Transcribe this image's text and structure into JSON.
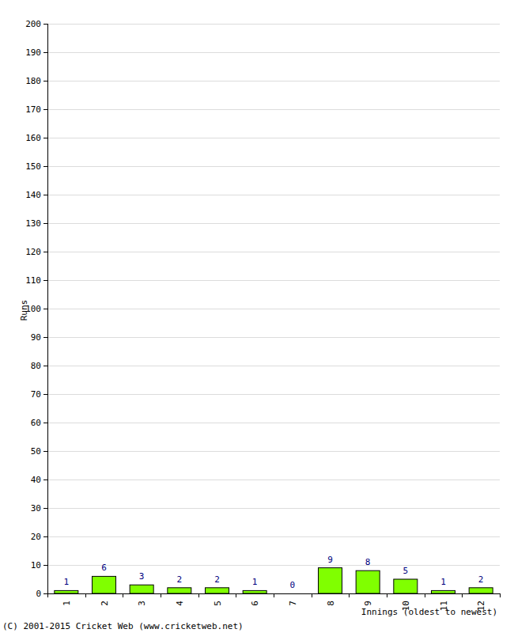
{
  "chart_data": {
    "type": "bar",
    "x_label": "Innings (oldest to newest)",
    "y_label": "Runs",
    "annotations": [
      "(C) 2001-2015 Cricket Web (www.cricketweb.net)"
    ],
    "categories": [
      "1",
      "2",
      "3",
      "4",
      "5",
      "6",
      "7",
      "8",
      "9",
      "10",
      "11",
      "12"
    ],
    "values": [
      1,
      6,
      3,
      2,
      2,
      1,
      0,
      9,
      8,
      5,
      1,
      2
    ],
    "color": "#80ff00",
    "ylim": [
      0,
      200
    ],
    "yticks": [
      0,
      10,
      20,
      30,
      40,
      50,
      60,
      70,
      80,
      90,
      100,
      110,
      120,
      130,
      140,
      150,
      160,
      170,
      180,
      190,
      200
    ],
    "grid": true,
    "data_labels": true
  }
}
